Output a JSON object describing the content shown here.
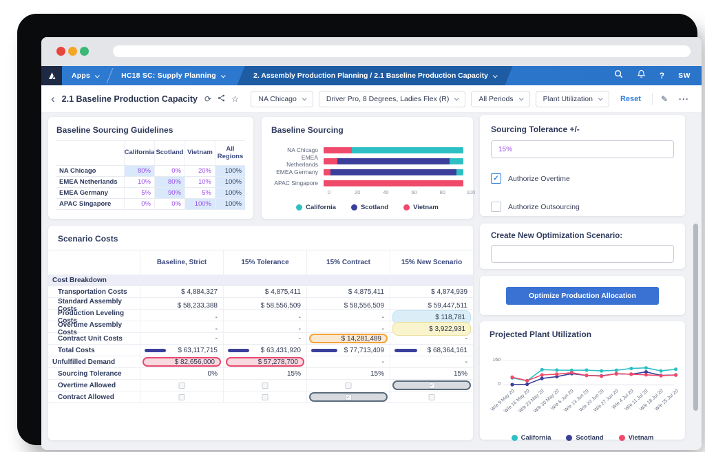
{
  "browser": {
    "url_value": ""
  },
  "navbar": {
    "apps_label": "Apps",
    "workspace_label": "HC18 SC: Supply Planning",
    "active_page_label": "2. Assembly Production Planning / 2.1 Baseline Production Capacity",
    "help_label": "?",
    "avatar_initials": "SW"
  },
  "page_header": {
    "back_glyph": "‹",
    "title": "2.1 Baseline Production Capacity",
    "refresh_glyph": "⟳",
    "star_glyph": "☆",
    "edit_glyph": "✎",
    "more_glyph": "···",
    "filters": [
      "NA Chicago",
      "Driver Pro, 8 Degrees, Ladies Flex (R)",
      "All Periods",
      "Plant Utilization"
    ],
    "reset_label": "Reset"
  },
  "guidelines": {
    "title": "Baseline Sourcing Guidelines",
    "columns": [
      "California",
      "Scotland",
      "Vietnam",
      "All Regions"
    ],
    "rows": [
      {
        "label": "NA Chicago",
        "values": [
          "80%",
          "0%",
          "20%",
          "100%"
        ],
        "highlight": [
          true,
          false,
          false,
          true
        ]
      },
      {
        "label": "EMEA Netherlands",
        "values": [
          "10%",
          "80%",
          "10%",
          "100%"
        ],
        "highlight": [
          false,
          true,
          false,
          true
        ]
      },
      {
        "label": "EMEA Germany",
        "values": [
          "5%",
          "90%",
          "5%",
          "100%"
        ],
        "highlight": [
          false,
          true,
          false,
          true
        ]
      },
      {
        "label": "APAC Singapore",
        "values": [
          "0%",
          "0%",
          "100%",
          "100%"
        ],
        "highlight": [
          false,
          false,
          true,
          true
        ]
      }
    ]
  },
  "tolerance": {
    "title": "Sourcing Tolerance +/-",
    "value": "15%",
    "checkboxes": [
      {
        "label": "Authorize Overtime",
        "checked": true
      },
      {
        "label": "Authorize Outsourcing",
        "checked": false
      }
    ]
  },
  "scenario": {
    "title": "Scenario Costs",
    "columns": [
      "Baseline, Strict",
      "15% Tolerance",
      "15% Contract",
      "15% New Scenario"
    ],
    "rows": [
      {
        "label": "Cost Breakdown",
        "type": "group"
      },
      {
        "label": "Transportation Costs",
        "indent": true,
        "values": [
          "$ 4,884,327",
          "$ 4,875,411",
          "$ 4,875,411",
          "$ 4,874,939"
        ]
      },
      {
        "label": "Standard Assembly Costs",
        "indent": true,
        "values": [
          "$ 58,233,388",
          "$ 58,556,509",
          "$ 58,556,509",
          "$ 59,447,511"
        ]
      },
      {
        "label": "Production Leveling Costs",
        "indent": true,
        "values": [
          "-",
          "-",
          "-",
          "$ 118,781"
        ],
        "pills": [
          null,
          null,
          null,
          "blue"
        ]
      },
      {
        "label": "Overtime Assembly Costs",
        "indent": true,
        "values": [
          "-",
          "-",
          "-",
          "$ 3,922,931"
        ],
        "pills": [
          null,
          null,
          null,
          "yellow"
        ]
      },
      {
        "label": "Contract Unit Costs",
        "indent": true,
        "values": [
          "-",
          "-",
          "$ 14,281,489",
          "-"
        ],
        "pills": [
          null,
          null,
          "orange",
          null
        ]
      },
      {
        "label": "Total Costs",
        "indent": true,
        "values": [
          "$ 63,117,715",
          "$ 63,431,920",
          "$ 77,713,409",
          "$ 68,364,161"
        ],
        "bars": [
          63117715,
          63431920,
          77713409,
          68364161
        ]
      },
      {
        "label": "Unfulfilled Demand",
        "values": [
          "$ 82,656,000",
          "$ 57,278,700",
          "-",
          "-"
        ],
        "pills": [
          "red",
          "red",
          null,
          null
        ]
      },
      {
        "label": "Sourcing Tolerance",
        "indent": true,
        "values": [
          "0%",
          "15%",
          "15%",
          "15%"
        ]
      },
      {
        "label": "Overtime Allowed",
        "indent": true,
        "type": "checkbox",
        "checks": [
          false,
          false,
          false,
          true
        ]
      },
      {
        "label": "Contract Allowed",
        "indent": true,
        "type": "checkbox",
        "checks": [
          false,
          false,
          true,
          false
        ]
      }
    ]
  },
  "create_scenario": {
    "label": "Create New Optimization Scenario:",
    "value": ""
  },
  "optimize": {
    "button_label": "Optimize Production Allocation"
  },
  "chart_data": [
    {
      "id": "baseline_sourcing",
      "type": "bar",
      "orientation": "horizontal",
      "stacked": true,
      "title": "Baseline Sourcing",
      "categories": [
        "NA Chicago",
        "EMEA Netherlands",
        "EMEA Germany",
        "APAC Singapore"
      ],
      "series": [
        {
          "name": "Vietnam",
          "color": "#ef4a6a",
          "values": [
            20,
            10,
            5,
            100
          ]
        },
        {
          "name": "Scotland",
          "color": "#3a3f9c",
          "values": [
            0,
            80,
            90,
            0
          ]
        },
        {
          "name": "California",
          "color": "#2dbfc4",
          "values": [
            80,
            10,
            5,
            0
          ]
        }
      ],
      "legend_order": [
        "California",
        "Scotland",
        "Vietnam"
      ],
      "xticks": [
        0,
        20,
        40,
        60,
        80,
        100
      ],
      "xlim": [
        0,
        100
      ],
      "legend_position": "bottom"
    },
    {
      "id": "projected_plant_utilization",
      "type": "line",
      "title": "Projected Plant Utilization",
      "x": [
        "W/e 9 May 20",
        "W/e 16 May 20",
        "W/e 23 May 20",
        "W/e 30 May 20",
        "W/e 6 Jun 20",
        "W/e 13 Jun 20",
        "W/e 20 Jun 20",
        "W/e 27 Jun 20",
        "W/e 4 Jul 20",
        "W/e 11 Jul 20",
        "W/e 18 Jul 20",
        "W/e 25 Jul 20"
      ],
      "series": [
        {
          "name": "California",
          "color": "#2dbfc4",
          "values": [
            45,
            25,
            99,
            96,
            95,
            96,
            91,
            95,
            107,
            111,
            91,
            102
          ]
        },
        {
          "name": "Scotland",
          "color": "#3a3f9c",
          "values": [
            0,
            2,
            41,
            53,
            73,
            61,
            58,
            72,
            69,
            84,
            61,
            64
          ]
        },
        {
          "name": "Vietnam",
          "color": "#ef4a6a",
          "values": [
            49,
            26,
            64,
            69,
            79,
            61,
            56,
            72,
            69,
            65,
            59,
            63
          ]
        }
      ],
      "yticks": [
        0,
        160
      ],
      "ylim": [
        0,
        160
      ],
      "legend_position": "bottom"
    }
  ],
  "colors": {
    "navbar": "#2e7ad1",
    "navbar_active_tab": "#1d5ca3",
    "logo_bg": "#1e2a44",
    "accent_blue": "#2f7fe0",
    "button_blue": "#3a72d4",
    "teal": "#2dbfc4",
    "indigo": "#3a3f9c",
    "red": "#ef4a6a",
    "purple_value": "#9a4ee8",
    "highlight_cell": "#d9e9fb",
    "traffic_red": "#e8453c",
    "traffic_yellow": "#f5a623",
    "traffic_green": "#3bb877"
  },
  "icons": {
    "back": "chevron-left",
    "refresh": "circular-arrows",
    "share": "share-network",
    "star": "star-outline",
    "search": "magnifier",
    "bell": "notification-bell",
    "help": "question-mark",
    "edit": "pencil",
    "more": "ellipsis",
    "caret": "chevron-down"
  }
}
